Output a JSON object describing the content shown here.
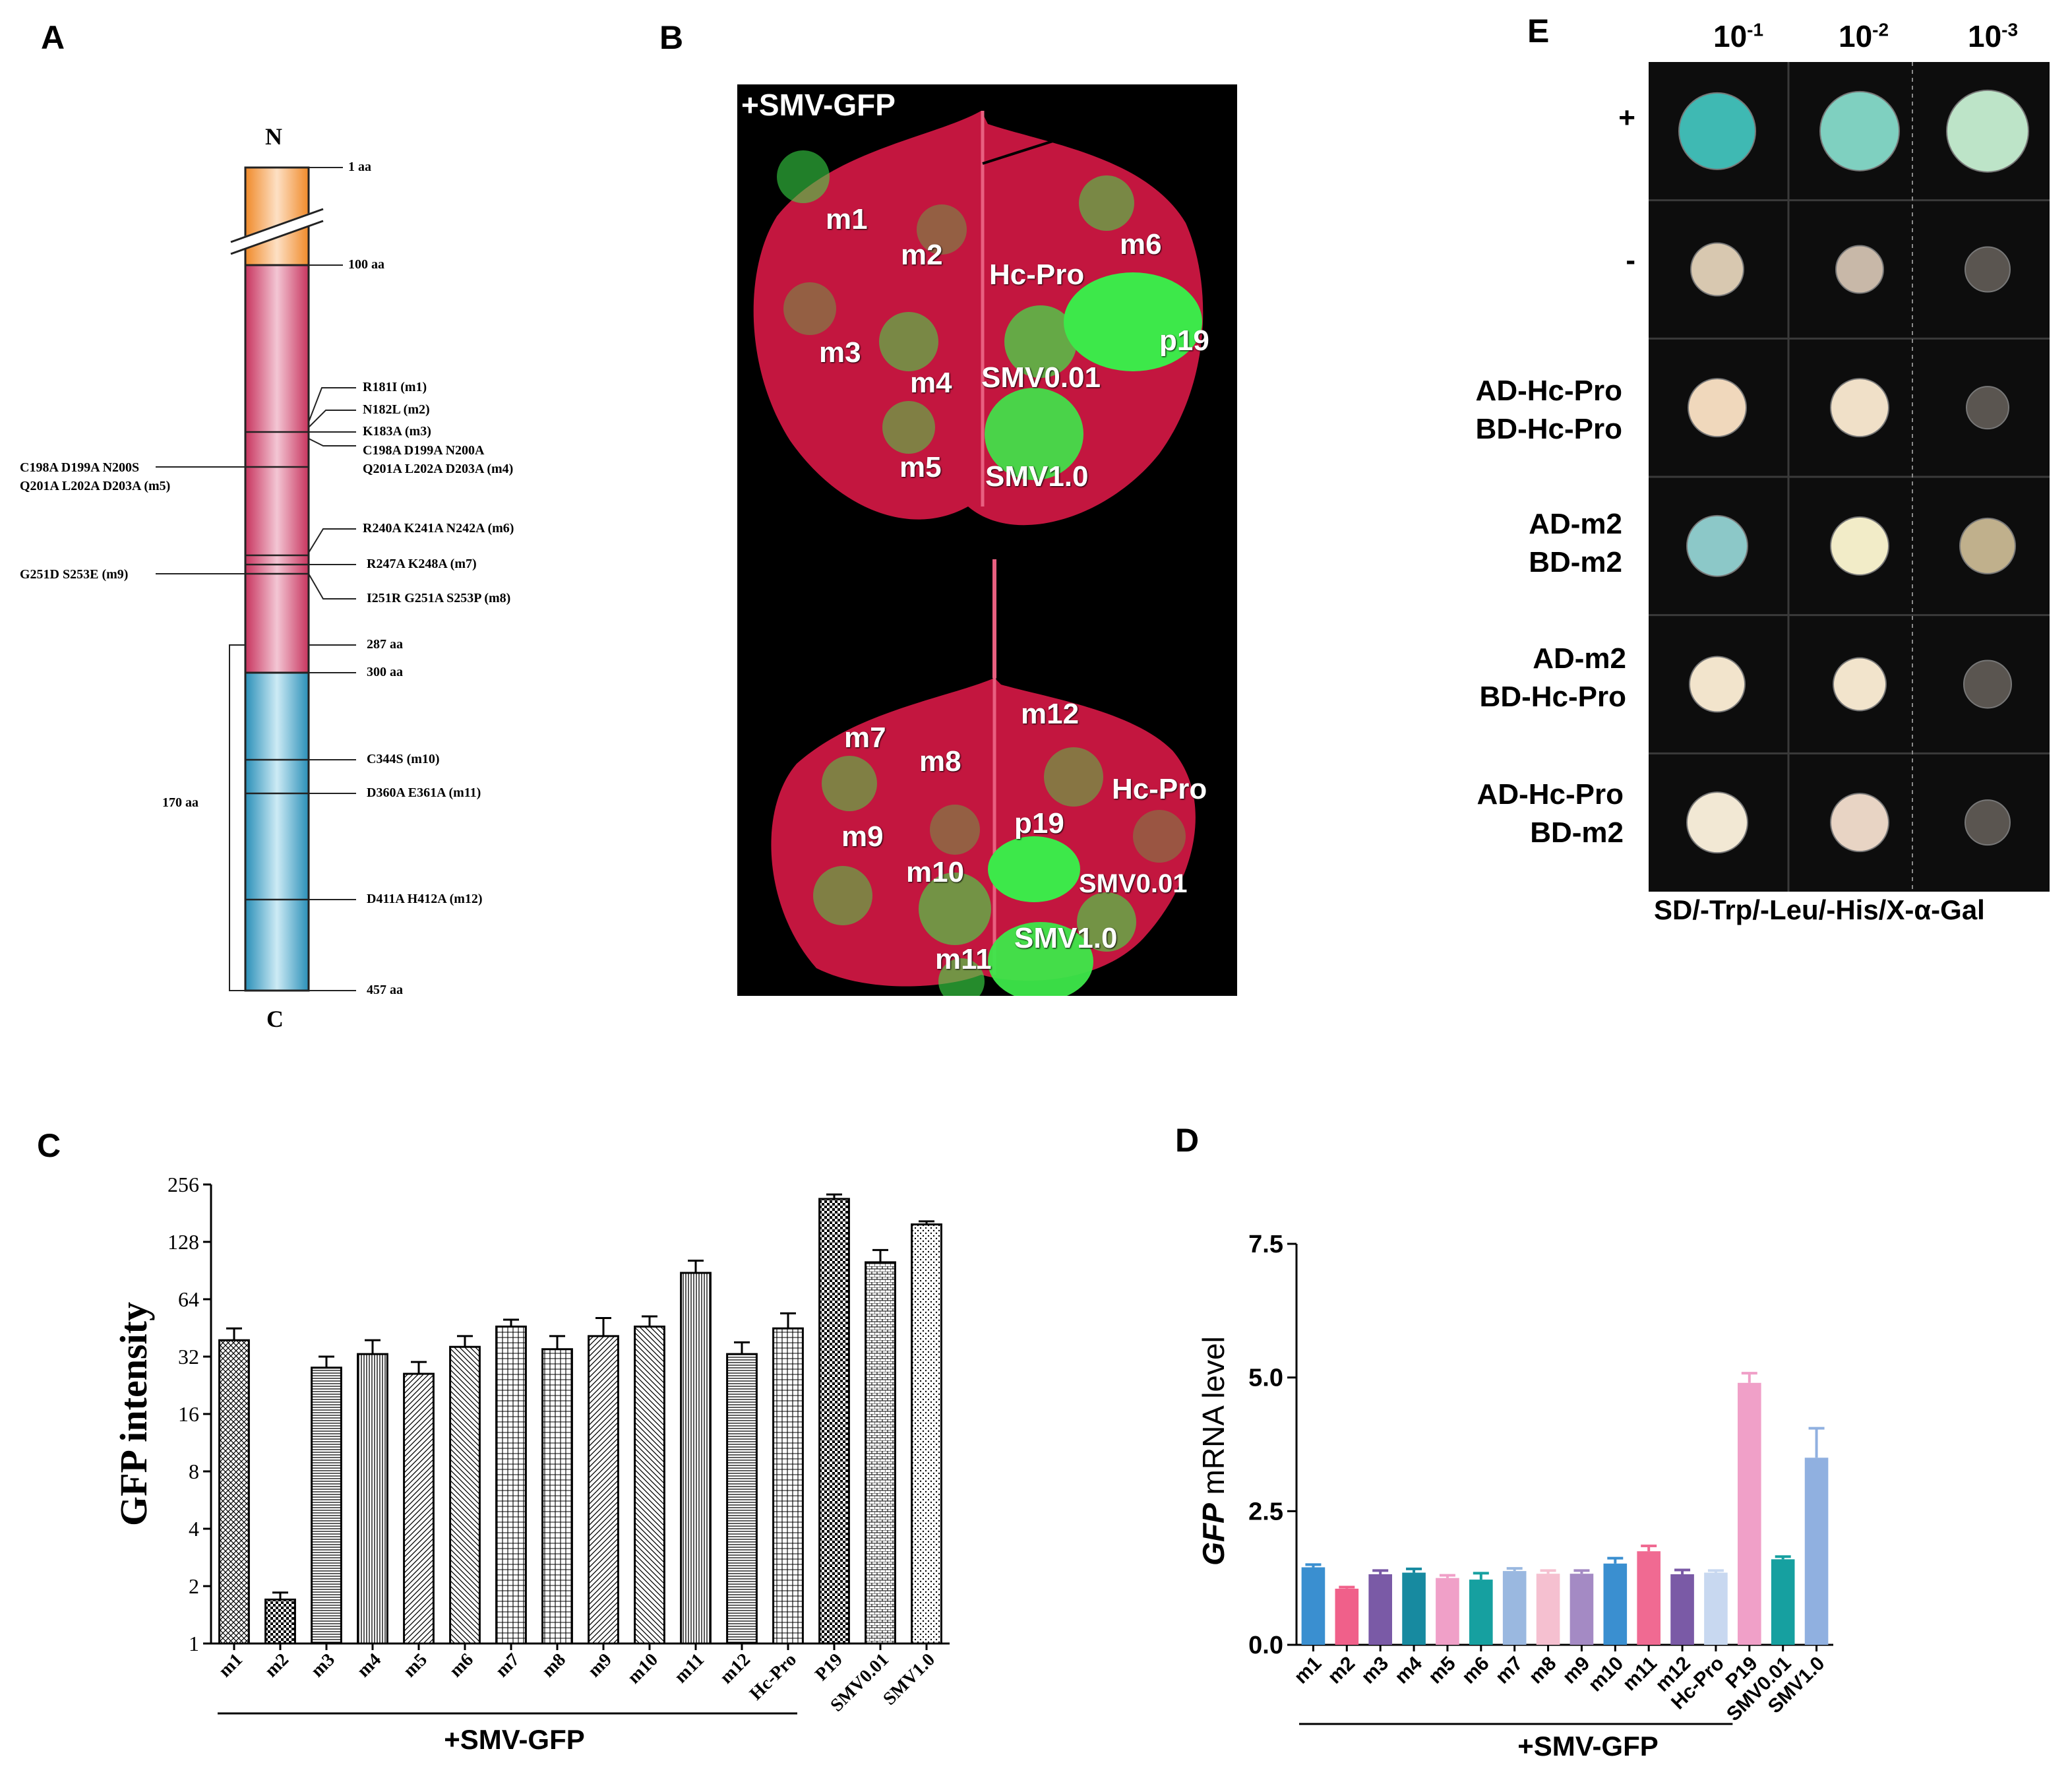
{
  "panels": {
    "a": "A",
    "b": "B",
    "c": "C",
    "d": "D",
    "e": "E"
  },
  "panel_a": {
    "n_term": "N",
    "c_term": "C",
    "span_label": "170 aa",
    "right_labels": [
      "1 aa",
      "100 aa",
      "R181I (m1)",
      "N182L (m2)",
      "K183A (m3)",
      "C198A D199A N200A",
      "Q201A L202A D203A (m4)",
      "R240A K241A N242A (m6)",
      "R247A K248A (m7)",
      "I251R G251A S253P (m8)",
      "287 aa",
      "300 aa",
      "C344S (m10)",
      "D360A E361A (m11)",
      "D411A H412A (m12)",
      "457 aa"
    ],
    "left_labels": [
      "C198A D199A N200S",
      "Q201A L202A D203A (m5)",
      "G251D S253E (m9)"
    ],
    "colors": {
      "n_region": "#f08a2a",
      "mid_region": "#c8345e",
      "c_region": "#2a8fb8"
    }
  },
  "panel_b": {
    "title": "+SMV-GFP",
    "leaf1_labels": [
      "m1",
      "m2",
      "Hc-Pro",
      "m6",
      "m3",
      "m4",
      "SMV0.01",
      "p19",
      "m5",
      "SMV1.0"
    ],
    "leaf2_labels": [
      "m7",
      "m8",
      "m12",
      "Hc-Pro",
      "m9",
      "p19",
      "m10",
      "SMV0.01",
      "m11",
      "SMV1.0"
    ]
  },
  "panel_e": {
    "dilutions": [
      {
        "base": "10",
        "exp": "-1"
      },
      {
        "base": "10",
        "exp": "-2"
      },
      {
        "base": "10",
        "exp": "-3"
      }
    ],
    "rows": [
      {
        "line1": "+",
        "line2": ""
      },
      {
        "line1": "-",
        "line2": ""
      },
      {
        "line1": "AD-Hc-Pro",
        "line2": "BD-Hc-Pro"
      },
      {
        "line1": "AD-m2",
        "line2": "BD-m2"
      },
      {
        "line1": "AD-m2",
        "line2": "BD-Hc-Pro"
      },
      {
        "line1": "AD-Hc-Pro",
        "line2": "BD-m2"
      }
    ],
    "medium": "SD/-Trp/-Leu/-His/X-α-Gal"
  },
  "chart_data": [
    {
      "type": "bar",
      "panel": "C",
      "ylabel": "GFP intensity",
      "yscale": "log2",
      "ylim": [
        1,
        256
      ],
      "yticks": [
        "1",
        "2",
        "4",
        "8",
        "16",
        "32",
        "64",
        "128",
        "256"
      ],
      "categories": [
        "m1",
        "m2",
        "m3",
        "m4",
        "m5",
        "m6",
        "m7",
        "m8",
        "m9",
        "m10",
        "m11",
        "m12",
        "Hc-Pro",
        "P19",
        "SMV0.01",
        "SMV1.0"
      ],
      "values": [
        39,
        1.7,
        28,
        33,
        26,
        36,
        46,
        35,
        41,
        46,
        88,
        33,
        45,
        215,
        100,
        158
      ],
      "errors": [
        6,
        0.15,
        4,
        6,
        4,
        5,
        4,
        6,
        10,
        6,
        14,
        5,
        9,
        12,
        16,
        6
      ],
      "group_label": "+SMV-GFP"
    },
    {
      "type": "bar",
      "panel": "D",
      "ylabel_italic": "GFP",
      "ylabel_rest": " mRNA level",
      "ylim": [
        0,
        7.5
      ],
      "yticks": [
        "0.0",
        "2.5",
        "5.0",
        "7.5"
      ],
      "categories": [
        "m1",
        "m2",
        "m3",
        "m4",
        "m5",
        "m6",
        "m7",
        "m8",
        "m9",
        "m10",
        "m11",
        "m12",
        "Hc-Pro",
        "P19",
        "SMV0.01",
        "SMV1.0"
      ],
      "values": [
        1.45,
        1.05,
        1.32,
        1.35,
        1.25,
        1.22,
        1.38,
        1.33,
        1.33,
        1.52,
        1.75,
        1.32,
        1.35,
        4.9,
        1.6,
        3.5
      ],
      "errors": [
        0.05,
        0.03,
        0.07,
        0.07,
        0.05,
        0.12,
        0.05,
        0.06,
        0.06,
        0.1,
        0.1,
        0.08,
        0.04,
        0.18,
        0.05,
        0.55
      ],
      "colors": [
        "#3a8fd0",
        "#f0608a",
        "#7a5aa6",
        "#178aa0",
        "#f0a0c8",
        "#16a0a0",
        "#9ab8e0",
        "#f5c0d0",
        "#a48ac4",
        "#3a8fd0",
        "#f06a92",
        "#7a5aa6",
        "#c8d8f0",
        "#f0a0c8",
        "#16a0a0",
        "#90b0e0"
      ],
      "group_label": "+SMV-GFP"
    }
  ]
}
